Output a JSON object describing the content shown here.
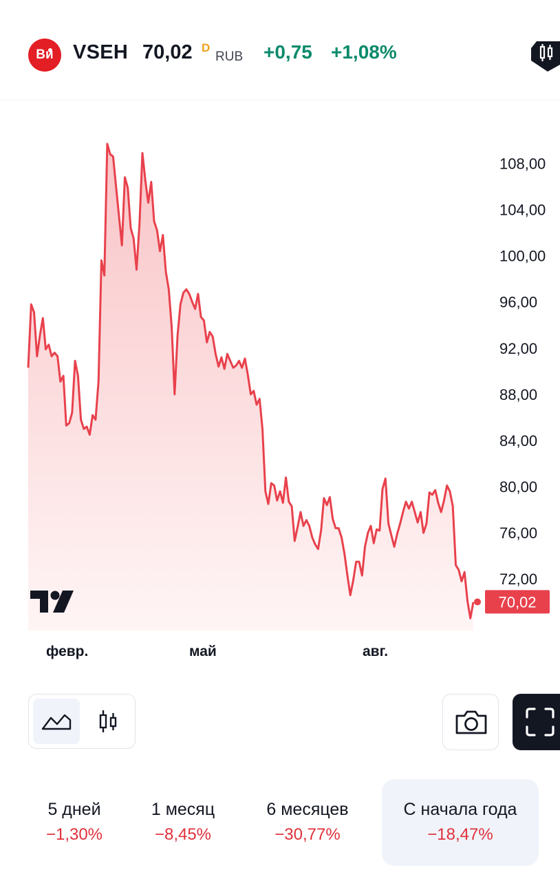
{
  "header": {
    "logo_text": "Ви",
    "symbol": "VSEH",
    "price": "70,02",
    "delay_badge": "D",
    "currency": "RUB",
    "change": "+0,75",
    "change_pct": "+1,08%",
    "icons": {
      "logo": "vi-logo-icon",
      "header_action": "candlestick-badge-icon"
    }
  },
  "colors": {
    "line": "#e8414c",
    "area_top": "#f9c4c7",
    "area_bottom": "#fff5f5",
    "positive": "#0b8a6b",
    "negative": "#e0313c",
    "price_tag_bg": "#e8414c",
    "delay_badge": "#f0a01e"
  },
  "chart_data": {
    "type": "area",
    "title": "",
    "xlabel": "",
    "ylabel": "",
    "x_tick_labels": [
      "февр.",
      "май",
      "авг."
    ],
    "y_tick_labels": [
      "108,00",
      "104,00",
      "100,00",
      "96,00",
      "92,00",
      "88,00",
      "84,00",
      "80,00",
      "76,00",
      "72,00"
    ],
    "y_ticks": [
      108,
      104,
      100,
      96,
      92,
      88,
      84,
      80,
      76,
      72
    ],
    "ylim": [
      67.9,
      112.5
    ],
    "grid": false,
    "last_price_label": "70,02",
    "last_price": 70.02,
    "series": [
      {
        "values": [
          90.3,
          95.8,
          95.1,
          91.3,
          93.1,
          94.6,
          91.9,
          92.3,
          91.3,
          91.6,
          91.3,
          89.1,
          89.6,
          85.3,
          85.5,
          86.4,
          90.9,
          89.6,
          85.8,
          85.0,
          85.2,
          84.5,
          86.2,
          85.8,
          89.1,
          99.6,
          98.3,
          109.7,
          108.8,
          108.6,
          106.0,
          103.4,
          100.9,
          106.8,
          105.9,
          102.4,
          101.5,
          98.8,
          102.8,
          108.9,
          106.5,
          104.6,
          106.4,
          103.0,
          102.2,
          100.4,
          101.8,
          98.6,
          97.1,
          93.8,
          88.0,
          93.1,
          95.8,
          96.8,
          97.1,
          96.7,
          96.0,
          95.4,
          96.7,
          94.7,
          94.4,
          92.5,
          93.4,
          93.0,
          91.5,
          90.4,
          91.2,
          90.2,
          91.5,
          90.9,
          90.3,
          90.5,
          90.9,
          90.3,
          91.1,
          89.7,
          88.0,
          88.3,
          87.1,
          87.6,
          85.0,
          79.6,
          78.5,
          80.3,
          80.1,
          78.8,
          79.6,
          78.6,
          80.8,
          78.7,
          78.3,
          75.3,
          76.5,
          77.8,
          76.6,
          77.1,
          76.6,
          75.6,
          75.0,
          74.6,
          76.2,
          79.0,
          78.4,
          79.1,
          77.2,
          76.4,
          76.4,
          75.6,
          74.2,
          72.3,
          70.6,
          71.9,
          73.5,
          73.5,
          72.3,
          74.8,
          76.0,
          76.6,
          75.1,
          76.3,
          76.2,
          79.8,
          80.7,
          76.8,
          75.8,
          74.8,
          75.9,
          76.8,
          77.8,
          78.7,
          78.1,
          78.7,
          77.8,
          76.9,
          77.8,
          76.0,
          76.8,
          79.5,
          79.3,
          79.7,
          78.6,
          77.8,
          78.8,
          80.1,
          79.6,
          78.3,
          73.2,
          72.8,
          71.8,
          72.6,
          70.1,
          68.6,
          70.0
        ]
      }
    ]
  },
  "toolbar": {
    "chart_style_buttons": [
      {
        "name": "area-style",
        "icon": "area-chart-icon",
        "active": true
      },
      {
        "name": "candles-style",
        "icon": "candlestick-icon",
        "active": false
      }
    ],
    "icons": {
      "snapshot": "camera-icon",
      "fullscreen": "fullscreen-icon",
      "brand": "tradingview-logo-icon"
    }
  },
  "periods": [
    {
      "label": "5 дней",
      "value": "−1,30%",
      "active": false
    },
    {
      "label": "1 месяц",
      "value": "−8,45%",
      "active": false
    },
    {
      "label": "6 месяцев",
      "value": "−30,77%",
      "active": false
    },
    {
      "label": "С начала года",
      "value": "−18,47%",
      "active": true
    }
  ]
}
